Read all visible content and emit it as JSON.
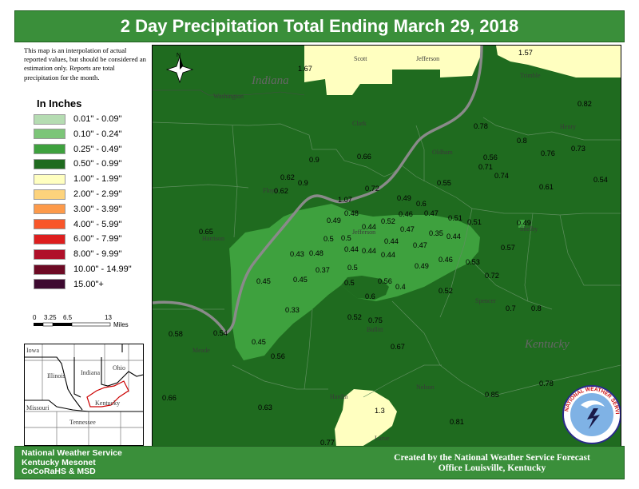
{
  "title": "2 Day Precipitation Total Ending March 29, 2018",
  "note": "This map is an interpolation of actual reported values, but should be considered an estimation only. Reports are total precipitation for the month.",
  "legend": {
    "title": "In Inches",
    "items": [
      {
        "label": "0.01\" - 0.09\"",
        "color": "#b5dcb2"
      },
      {
        "label": "0.10\" - 0.24\"",
        "color": "#7cc578"
      },
      {
        "label": "0.25\" - 0.49\"",
        "color": "#3ea13e"
      },
      {
        "label": "0.50\" - 0.99\"",
        "color": "#1f6b1f"
      },
      {
        "label": "1.00\" - 1.99\"",
        "color": "#ffffc0"
      },
      {
        "label": "2.00\" - 2.99\"",
        "color": "#fdd37c"
      },
      {
        "label": "3.00\" - 3.99\"",
        "color": "#fd9a4a"
      },
      {
        "label": "4.00\" - 5.99\"",
        "color": "#f8562a"
      },
      {
        "label": "6.00\" - 7.99\"",
        "color": "#dd1e1e"
      },
      {
        "label": "8.00\" - 9.99\"",
        "color": "#b0102a"
      },
      {
        "label": "10.00\" - 14.99\"",
        "color": "#6d0a24"
      },
      {
        "label": "15.00\"+",
        "color": "#3e0a30"
      }
    ]
  },
  "scale": {
    "ticks": [
      "0",
      "3.25",
      "6.5",
      "13"
    ],
    "unit": "Miles"
  },
  "inset_labels": {
    "iowa": "Iowa",
    "illinois": "Illinois",
    "indiana": "Indiana",
    "ohio": "Ohio",
    "missouri": "Missouri",
    "kentucky": "Kentucky",
    "tennessee": "Tennessee"
  },
  "map_labels": {
    "states": {
      "indiana": "Indiana",
      "kentucky": "Kentucky"
    },
    "counties": [
      "Scott",
      "Jefferson",
      "Trimble",
      "Washington",
      "Clark",
      "Oldham",
      "Henry",
      "Floyd",
      "Harrison",
      "Jefferson",
      "Shelby",
      "Spencer",
      "Meade",
      "Bullitt",
      "Hardin",
      "Nelson",
      "Larue"
    ],
    "north_arrow": "N"
  },
  "points": [
    {
      "value": "1.67"
    },
    {
      "value": "1.57"
    },
    {
      "value": "0.82"
    },
    {
      "value": "0.78"
    },
    {
      "value": "0.8"
    },
    {
      "value": "0.73"
    },
    {
      "value": "0.76"
    },
    {
      "value": "0.56"
    },
    {
      "value": "0.71"
    },
    {
      "value": "0.74"
    },
    {
      "value": "0.54"
    },
    {
      "value": "0.61"
    },
    {
      "value": "0.9"
    },
    {
      "value": "0.66"
    },
    {
      "value": "0.62"
    },
    {
      "value": "0.9"
    },
    {
      "value": "0.62"
    },
    {
      "value": "0.72"
    },
    {
      "value": "0.55"
    },
    {
      "value": "1.07"
    },
    {
      "value": "0.49"
    },
    {
      "value": "0.6"
    },
    {
      "value": "0.46"
    },
    {
      "value": "0.47"
    },
    {
      "value": "0.51"
    },
    {
      "value": "0.51"
    },
    {
      "value": "0.48"
    },
    {
      "value": "0.49"
    },
    {
      "value": "0.52"
    },
    {
      "value": "0.49"
    },
    {
      "value": "0.65"
    },
    {
      "value": "0.44"
    },
    {
      "value": "0.47"
    },
    {
      "value": "0.35"
    },
    {
      "value": "0.44"
    },
    {
      "value": "0.57"
    },
    {
      "value": "0.5"
    },
    {
      "value": "0.5"
    },
    {
      "value": "0.44"
    },
    {
      "value": "0.44"
    },
    {
      "value": "0.47"
    },
    {
      "value": "0.43"
    },
    {
      "value": "0.48"
    },
    {
      "value": "0.44"
    },
    {
      "value": "0.44"
    },
    {
      "value": "0.46"
    },
    {
      "value": "0.53"
    },
    {
      "value": "0.5"
    },
    {
      "value": "0.49"
    },
    {
      "value": "0.37"
    },
    {
      "value": "0.72"
    },
    {
      "value": "0.45"
    },
    {
      "value": "0.45"
    },
    {
      "value": "0.5"
    },
    {
      "value": "0.56"
    },
    {
      "value": "0.4"
    },
    {
      "value": "0.6"
    },
    {
      "value": "0.52"
    },
    {
      "value": "0.7"
    },
    {
      "value": "0.8"
    },
    {
      "value": "0.33"
    },
    {
      "value": "0.52"
    },
    {
      "value": "0.75"
    },
    {
      "value": "0.58"
    },
    {
      "value": "0.54"
    },
    {
      "value": "0.45"
    },
    {
      "value": "0.67"
    },
    {
      "value": "0.56"
    },
    {
      "value": "0.66"
    },
    {
      "value": "0.63"
    },
    {
      "value": "0.85"
    },
    {
      "value": "0.78"
    },
    {
      "value": "1.3"
    },
    {
      "value": "0.81"
    },
    {
      "value": "0.77"
    }
  ],
  "logo_text": "NATIONAL WEATHER SERVICE",
  "credits_left": [
    "National Weather Service",
    "Kentucky Mesonet",
    "CoCoRaHS & MSD"
  ],
  "credits_right": [
    "Created by the National Weather Service Forecast",
    "Office Louisville, Kentucky"
  ]
}
